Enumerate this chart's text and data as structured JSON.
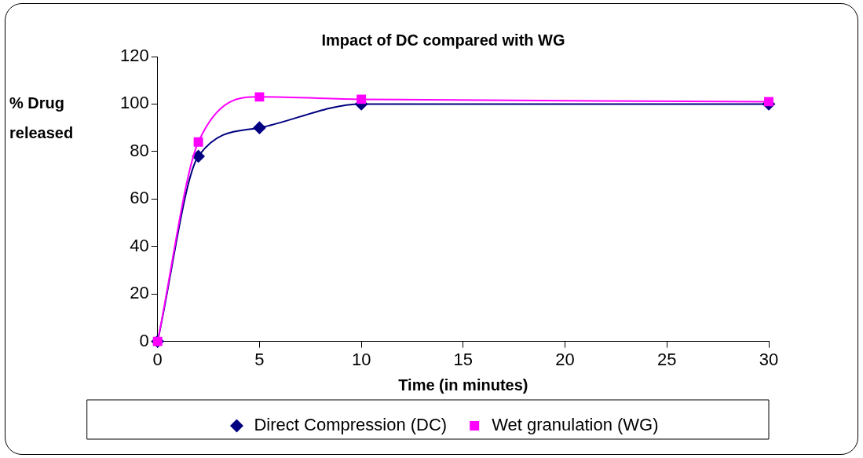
{
  "chart_data": {
    "type": "line",
    "title": "Impact of DC compared with WG",
    "xlabel": "Time (in minutes)",
    "ylabel": "% Drug released",
    "x": [
      0,
      2,
      5,
      10,
      30
    ],
    "series": [
      {
        "name": "Direct Compression (DC)",
        "color": "#000080",
        "marker": "diamond",
        "values": [
          0,
          78,
          90,
          100,
          100
        ]
      },
      {
        "name": "Wet granulation (WG)",
        "color": "#ff00ff",
        "marker": "square",
        "values": [
          0,
          84,
          103,
          102,
          101
        ]
      }
    ],
    "xlim": [
      0,
      30
    ],
    "xticks": [
      0,
      5,
      10,
      15,
      20,
      25,
      30
    ],
    "ylim": [
      0,
      120
    ],
    "yticks": [
      0,
      20,
      40,
      60,
      80,
      100,
      120
    ],
    "grid": false,
    "legend": "bottom"
  }
}
